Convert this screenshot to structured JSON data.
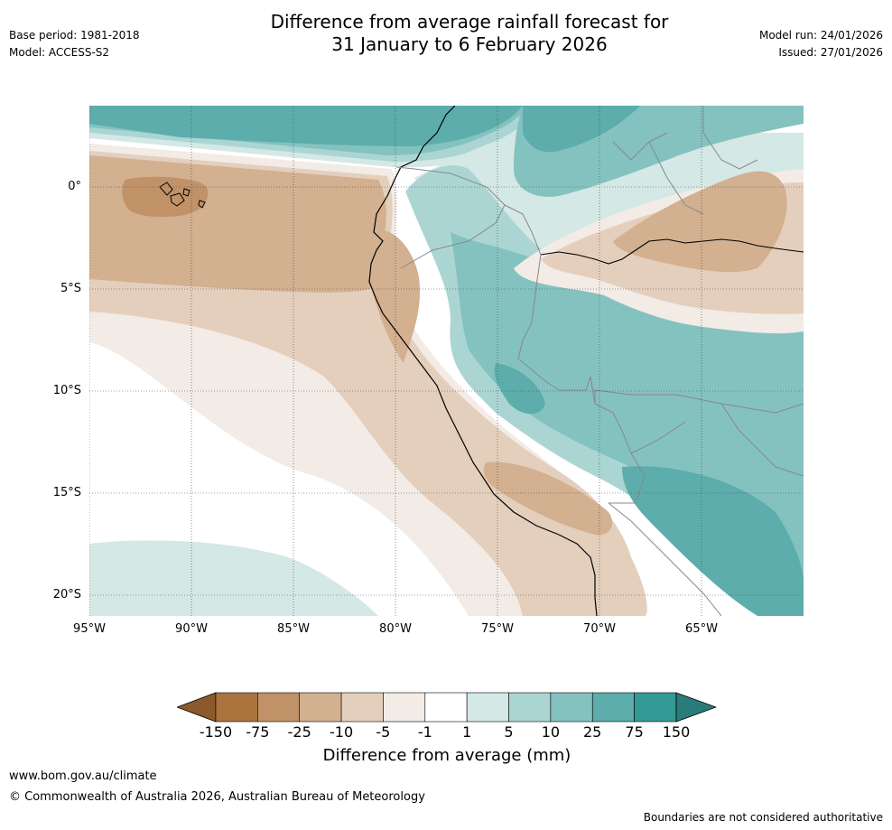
{
  "title": {
    "line1": "Difference from average rainfall forecast for",
    "line2": "31 January to 6 February 2026"
  },
  "meta": {
    "base_period": "Base period: 1981-2018",
    "model": "Model: ACCESS-S2",
    "model_run": "Model run: 24/01/2026",
    "issued": "Issued: 27/01/2026"
  },
  "map": {
    "lat_labels": [
      "0°",
      "5°S",
      "10°S",
      "15°S",
      "20°S"
    ],
    "lon_labels": [
      "95°W",
      "90°W",
      "85°W",
      "80°W",
      "75°W",
      "70°W",
      "65°W"
    ]
  },
  "colorbar": {
    "ticks": [
      "-150",
      "-75",
      "-25",
      "-10",
      "-5",
      "-1",
      "1",
      "5",
      "10",
      "25",
      "75",
      "150"
    ],
    "colors": [
      "#8a5a2b",
      "#ab743f",
      "#c19268",
      "#d2b090",
      "#e4cfbd",
      "#f3ebe5",
      "#ffffff",
      "#d4e8e6",
      "#abd5d3",
      "#84c2c0",
      "#5cadab",
      "#339a97",
      "#2a7c7a"
    ],
    "title": "Difference from average (mm)"
  },
  "footer": {
    "url": "www.bom.gov.au/climate",
    "copyright": "© Commonwealth of Australia 2026, Australian Bureau of Meteorology",
    "disclaimer": "Boundaries are not considered authoritative"
  }
}
